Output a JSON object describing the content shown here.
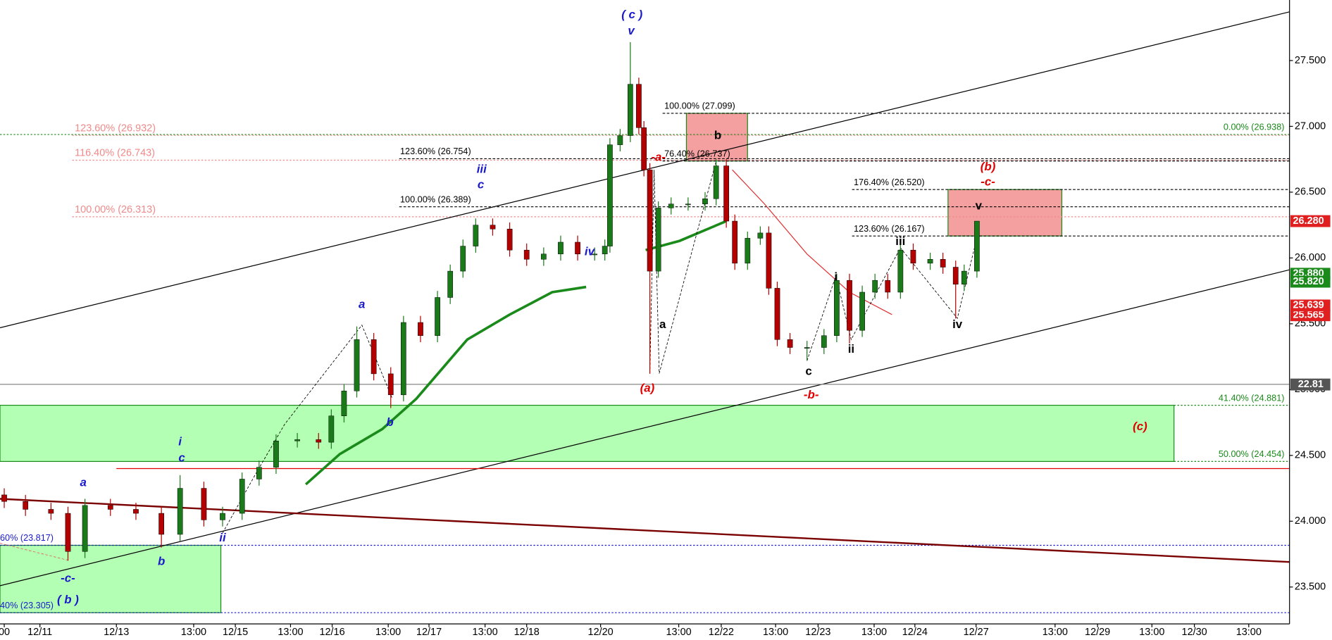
{
  "chart_data": {
    "type": "candlestick",
    "up_color": "#1a7a1a",
    "down_color": "#b30000",
    "x": [
      0.5,
      3,
      6,
      8,
      10,
      13,
      16,
      19,
      21.2,
      24,
      26.2,
      28.5,
      30.5,
      32.5,
      35,
      37.5,
      39,
      40.5,
      42,
      44,
      46,
      47.5,
      49.5,
      51.5,
      53,
      54.5,
      56,
      58,
      60,
      62,
      64,
      66,
      68,
      70,
      71.2,
      71.8,
      73,
      74.2,
      75.2,
      75.8,
      76.5,
      77.5,
      79,
      81,
      83,
      84.3,
      85.5,
      86.5,
      88,
      89.5,
      90.5,
      91.5,
      93,
      95,
      97,
      98.5,
      100,
      101.5,
      103,
      104.5,
      106,
      107.5,
      109.5,
      111,
      112.5,
      113.5,
      115
    ],
    "open": [
      24.2,
      24.15,
      24.09,
      24.06,
      23.77,
      24.12,
      24.09,
      24.06,
      23.9,
      24.25,
      24.01,
      24.06,
      24.32,
      24.41,
      24.61,
      24.62,
      24.6,
      24.8,
      24.99,
      25.38,
      25.12,
      24.96,
      25.51,
      25.41,
      25.7,
      25.9,
      26.09,
      26.25,
      26.22,
      26.06,
      25.99,
      26.03,
      26.12,
      26.03,
      26.03,
      26.09,
      26.86,
      26.93,
      27.32,
      26.99,
      26.67,
      25.9,
      26.38,
      26.41,
      26.41,
      26.45,
      26.7,
      26.28,
      25.96,
      26.15,
      26.19,
      25.77,
      25.38,
      25.32,
      25.32,
      25.41,
      25.83,
      25.45,
      25.74,
      25.83,
      25.74,
      26.06,
      25.96,
      25.99,
      25.93,
      25.8,
      25.9
    ],
    "high": [
      24.25,
      24.2,
      24.14,
      24.11,
      24.17,
      24.17,
      24.14,
      24.11,
      24.35,
      24.3,
      24.11,
      24.37,
      24.46,
      24.66,
      24.67,
      24.67,
      24.85,
      25.04,
      25.48,
      25.43,
      25.17,
      25.56,
      25.56,
      25.75,
      25.95,
      26.14,
      26.3,
      26.3,
      26.27,
      26.11,
      26.08,
      26.17,
      26.17,
      26.08,
      26.14,
      26.91,
      26.98,
      27.64,
      27.37,
      27.04,
      26.72,
      26.43,
      26.46,
      26.46,
      26.5,
      26.75,
      26.75,
      26.33,
      26.2,
      26.24,
      26.24,
      25.82,
      25.43,
      25.37,
      25.46,
      25.88,
      25.88,
      25.79,
      25.88,
      25.88,
      26.11,
      26.11,
      26.04,
      26.04,
      25.98,
      25.95,
      26.28
    ],
    "low": [
      24.1,
      24.04,
      24.01,
      23.7,
      23.72,
      24.04,
      24.01,
      23.8,
      23.85,
      23.96,
      23.96,
      24.01,
      24.27,
      24.36,
      24.56,
      24.55,
      24.55,
      24.75,
      24.94,
      25.07,
      24.86,
      24.91,
      25.36,
      25.36,
      25.65,
      25.85,
      26.04,
      26.17,
      26.01,
      25.94,
      25.94,
      25.98,
      25.98,
      25.98,
      25.98,
      26.04,
      26.81,
      26.88,
      26.94,
      26.62,
      25.12,
      25.85,
      26.33,
      26.36,
      26.36,
      26.4,
      26.23,
      25.91,
      25.91,
      26.1,
      25.72,
      25.33,
      25.27,
      25.22,
      25.27,
      25.36,
      25.35,
      25.4,
      25.69,
      25.69,
      25.69,
      25.91,
      25.91,
      25.88,
      25.54,
      25.75,
      25.85
    ],
    "close": [
      24.15,
      24.09,
      24.06,
      23.77,
      24.12,
      24.09,
      24.06,
      23.9,
      24.25,
      24.01,
      24.06,
      24.32,
      24.41,
      24.61,
      24.62,
      24.6,
      24.8,
      24.99,
      25.38,
      25.12,
      24.96,
      25.51,
      25.41,
      25.7,
      25.9,
      26.09,
      26.25,
      26.22,
      26.06,
      25.99,
      26.03,
      26.12,
      26.03,
      26.03,
      26.09,
      26.86,
      26.93,
      27.32,
      26.99,
      26.67,
      25.9,
      26.38,
      26.41,
      26.41,
      26.45,
      26.7,
      26.28,
      25.96,
      26.15,
      26.19,
      25.77,
      25.38,
      25.32,
      25.32,
      25.41,
      25.83,
      25.45,
      25.74,
      25.83,
      25.74,
      26.06,
      25.96,
      25.99,
      25.93,
      25.8,
      25.9,
      26.28
    ],
    "xlim": [
      0,
      151.8
    ],
    "ylim": [
      23.22,
      27.96
    ],
    "xticks": [
      {
        "value": 0.5,
        "label": "00"
      },
      {
        "value": 4.7,
        "label": "12/11"
      },
      {
        "value": 13.7,
        "label": "12/13"
      },
      {
        "value": 22.8,
        "label": "13:00"
      },
      {
        "value": 27.7,
        "label": "12/15"
      },
      {
        "value": 34.2,
        "label": "13:00"
      },
      {
        "value": 39.1,
        "label": "12/16"
      },
      {
        "value": 45.7,
        "label": "13:00"
      },
      {
        "value": 50.5,
        "label": "12/17"
      },
      {
        "value": 57.1,
        "label": "13:00"
      },
      {
        "value": 62.0,
        "label": "12/18"
      },
      {
        "value": 70.7,
        "label": "12/20"
      },
      {
        "value": 79.9,
        "label": "13:00"
      },
      {
        "value": 84.9,
        "label": "12/22"
      },
      {
        "value": 91.3,
        "label": "13:00"
      },
      {
        "value": 96.3,
        "label": "12/23"
      },
      {
        "value": 102.9,
        "label": "13:00"
      },
      {
        "value": 107.7,
        "label": "12/24"
      },
      {
        "value": 114.9,
        "label": "12/27"
      },
      {
        "value": 124.2,
        "label": "13:00"
      },
      {
        "value": 129.2,
        "label": "12/29"
      },
      {
        "value": 135.6,
        "label": "13:00"
      },
      {
        "value": 140.6,
        "label": "12/30"
      },
      {
        "value": 147.0,
        "label": "13:00"
      }
    ],
    "yticks": [
      {
        "value": 23.5,
        "label": "23.500"
      },
      {
        "value": 24,
        "label": "24.000"
      },
      {
        "value": 24.5,
        "label": "24.500"
      },
      {
        "value": 25,
        "label": "25.000"
      },
      {
        "value": 25.5,
        "label": "25.500"
      },
      {
        "value": 26,
        "label": "26.000"
      },
      {
        "value": 26.5,
        "label": "26.500"
      },
      {
        "value": 27,
        "label": "27.000"
      },
      {
        "value": 27.5,
        "label": "27.500"
      }
    ],
    "moving_averages": [
      {
        "color": "#1a8a1a",
        "width": 3,
        "x": [
          36,
          40,
          45,
          49,
          55,
          60,
          65,
          69,
          73,
          76,
          80,
          85.5
        ],
        "values": [
          24.28,
          24.51,
          24.7,
          24.93,
          25.38,
          25.57,
          25.74,
          25.78,
          null,
          26.06,
          26.13,
          26.28
        ]
      },
      {
        "color": "#e03030",
        "width": 1,
        "x": [
          86.2,
          90,
          95,
          100,
          105
        ],
        "values": [
          26.67,
          26.41,
          26.03,
          25.74,
          25.57
        ]
      }
    ],
    "trendlines": [
      {
        "color": "#000000",
        "width": 1,
        "x": [
          0,
          151.8
        ],
        "values": [
          25.47,
          27.87
        ]
      },
      {
        "color": "#000000",
        "width": 1,
        "x": [
          0,
          151.8
        ],
        "values": [
          23.51,
          25.91
        ]
      },
      {
        "color": "#7a0000",
        "width": 2,
        "x": [
          0,
          151.8
        ],
        "values": [
          24.17,
          23.69
        ]
      },
      {
        "color": "#e00000",
        "width": 1,
        "x": [
          13.7,
          151.8
        ],
        "values": [
          24.4,
          24.4
        ]
      },
      {
        "color": "#888888",
        "width": 1,
        "x": [
          0,
          151.8
        ],
        "values": [
          25.04,
          25.04
        ]
      }
    ],
    "levels": [
      {
        "value": 26.932,
        "label": "123.60% (26.932)",
        "color": "#f08a8a"
      },
      {
        "value": 26.743,
        "label": "116.40% (26.743)",
        "color": "#f08a8a"
      },
      {
        "value": 26.313,
        "label": "100.00% (26.313)",
        "color": "#f08a8a"
      },
      {
        "value": 26.754,
        "label": "123.60% (26.754)",
        "color": "#000000"
      },
      {
        "value": 26.389,
        "label": "100.00% (26.389)",
        "color": "#000000"
      },
      {
        "value": 27.099,
        "label": "100.00% (27.099)",
        "color": "#000000"
      },
      {
        "value": 26.737,
        "label": "76.40% (26.737)",
        "color": "#000000"
      },
      {
        "value": 26.52,
        "label": "176.40% (26.520)",
        "color": "#000000"
      },
      {
        "value": 26.167,
        "label": "123.60% (26.167)",
        "color": "#000000"
      },
      {
        "value": 26.938,
        "label": "0.00% (26.938)",
        "color": "#1a8a1a"
      },
      {
        "value": 24.881,
        "label": "41.40% (24.881)",
        "color": "#1a8a1a"
      },
      {
        "value": 24.454,
        "label": "50.00% (24.454)",
        "color": "#1a8a1a"
      },
      {
        "value": 23.817,
        "label": "60% (23.817)",
        "color": "#1a1acc"
      },
      {
        "value": 23.305,
        "label": "40% (23.305)",
        "color": "#1a1acc"
      }
    ],
    "zones": [
      {
        "x": [
          0,
          138.2
        ],
        "low": 24.454,
        "high": 24.881,
        "color": "#b3ffb3"
      },
      {
        "x": [
          0,
          26
        ],
        "low": 23.305,
        "high": 23.817,
        "color": "#b3ffb3"
      },
      {
        "x": [
          80.8,
          88
        ],
        "low": 26.737,
        "high": 27.099,
        "color": "#f4a0a0"
      },
      {
        "x": [
          111.6,
          125
        ],
        "low": 26.167,
        "high": 26.52,
        "color": "#f4a0a0"
      }
    ],
    "annotations": [
      {
        "text": "( c )",
        "color": "#1a1acc"
      },
      {
        "text": "v",
        "color": "#1a1acc"
      },
      {
        "text": "iii",
        "color": "#1a1acc"
      },
      {
        "text": "c",
        "color": "#1a1acc"
      },
      {
        "text": "iv",
        "color": "#1a1acc"
      },
      {
        "text": "a",
        "color": "#1a1acc"
      },
      {
        "text": "b",
        "color": "#1a1acc"
      },
      {
        "text": "i",
        "color": "#1a1acc"
      },
      {
        "text": "c",
        "color": "#1a1acc"
      },
      {
        "text": "a",
        "color": "#1a1acc"
      },
      {
        "text": "ii",
        "color": "#1a1acc"
      },
      {
        "text": "b",
        "color": "#1a1acc"
      },
      {
        "text": "-c-",
        "color": "#1a1acc"
      },
      {
        "text": "( b )",
        "color": "#1a1acc"
      },
      {
        "text": "-a-",
        "color": "#e00000"
      },
      {
        "text": "a",
        "color": "#000000"
      },
      {
        "text": "(a)",
        "color": "#e00000"
      },
      {
        "text": "b",
        "color": "#000000"
      },
      {
        "text": "c",
        "color": "#000000"
      },
      {
        "text": "-b-",
        "color": "#e00000"
      },
      {
        "text": "i",
        "color": "#000000"
      },
      {
        "text": "ii",
        "color": "#000000"
      },
      {
        "text": "iii",
        "color": "#000000"
      },
      {
        "text": "iv",
        "color": "#000000"
      },
      {
        "text": "v",
        "color": "#000000"
      },
      {
        "text": "(b)",
        "color": "#e00000"
      },
      {
        "text": "-c-",
        "color": "#e00000"
      },
      {
        "text": "(c)",
        "color": "#e00000"
      }
    ],
    "price_tags": [
      {
        "value": 26.28,
        "label": "26.280",
        "color": "#e02020"
      },
      {
        "value": 25.565,
        "label": "25.565",
        "color": "#e02020"
      },
      {
        "value": 25.639,
        "label": "25.639",
        "color": "#e02020"
      },
      {
        "value": 25.88,
        "label": "25.880",
        "color": "#1a8a1a"
      },
      {
        "value": 25.82,
        "label": "25.820",
        "color": "#1a8a1a"
      }
    ],
    "indicator_tag": {
      "value": 22.81,
      "color": "#555555"
    }
  }
}
